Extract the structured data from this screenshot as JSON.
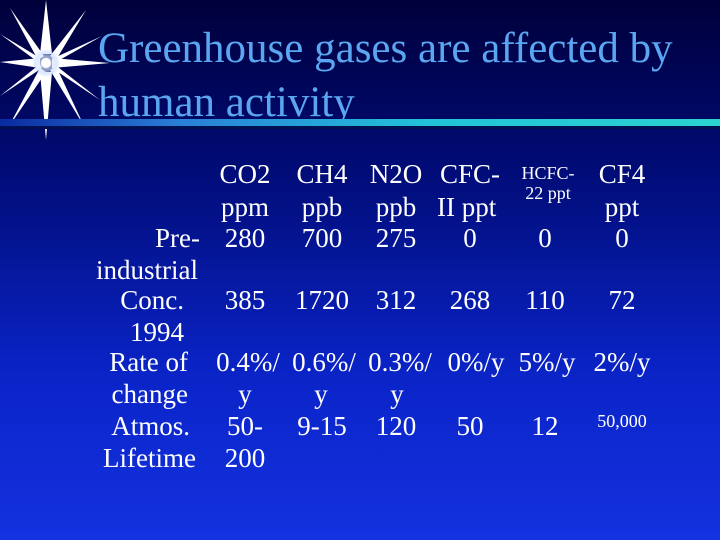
{
  "slide": {
    "title_line1": "Greenhouse gases are affected by",
    "title_line2": "human activity",
    "accent_title_color": "#5aa6f0",
    "accent_rule_color": "#22c3d8",
    "bullet_icon": "starburst-icon"
  },
  "table": {
    "headers": {
      "co2": [
        "CO2",
        "ppm"
      ],
      "ch4": [
        "CH4",
        "ppb"
      ],
      "n2o": [
        "N2O",
        "ppb"
      ],
      "cfc": [
        "CFC-",
        "II ppt"
      ],
      "hcfc": [
        "HCFC-",
        "22 ppt"
      ],
      "cf4": [
        "CF4",
        "ppt"
      ]
    },
    "rows": {
      "preindustrial": {
        "label": [
          "Pre-",
          "industrial"
        ],
        "values": [
          "280",
          "700",
          "275",
          "0",
          "0",
          "0"
        ]
      },
      "conc1994": {
        "label": [
          "Conc.",
          "1994"
        ],
        "values": [
          "385",
          "1720",
          "312",
          "268",
          "110",
          "72"
        ]
      },
      "rate": {
        "label": [
          "Rate of",
          "change"
        ],
        "values_line1": [
          "0.4%/",
          "0.6%/",
          "0.3%/",
          "0%/y",
          "5%/y",
          "2%/y"
        ],
        "values_line2": [
          "y",
          "y",
          "y"
        ]
      },
      "lifetime": {
        "label": [
          "Atmos.",
          "Lifetime"
        ],
        "values_line1": [
          "50-",
          "9-15",
          "120",
          "50",
          "12",
          "50,000"
        ],
        "values_line2": [
          "200"
        ]
      }
    }
  }
}
